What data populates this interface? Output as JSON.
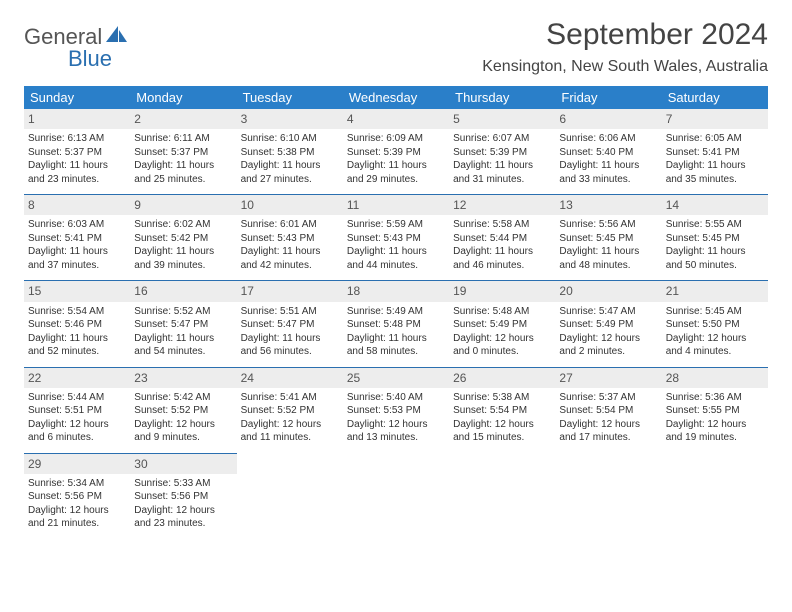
{
  "logo": {
    "text_main": "General",
    "text_sub": "Blue",
    "icon_color": "#2a6fb0"
  },
  "title": "September 2024",
  "location": "Kensington, New South Wales, Australia",
  "colors": {
    "header_bg": "#2a7fc9",
    "header_fg": "#ffffff",
    "daynum_bg": "#ededed",
    "row_divider": "#2a6fb0",
    "body_text": "#333333"
  },
  "weekdays": [
    "Sunday",
    "Monday",
    "Tuesday",
    "Wednesday",
    "Thursday",
    "Friday",
    "Saturday"
  ],
  "days": [
    {
      "n": 1,
      "sunrise": "6:13 AM",
      "sunset": "5:37 PM",
      "dl": "11 hours and 23 minutes."
    },
    {
      "n": 2,
      "sunrise": "6:11 AM",
      "sunset": "5:37 PM",
      "dl": "11 hours and 25 minutes."
    },
    {
      "n": 3,
      "sunrise": "6:10 AM",
      "sunset": "5:38 PM",
      "dl": "11 hours and 27 minutes."
    },
    {
      "n": 4,
      "sunrise": "6:09 AM",
      "sunset": "5:39 PM",
      "dl": "11 hours and 29 minutes."
    },
    {
      "n": 5,
      "sunrise": "6:07 AM",
      "sunset": "5:39 PM",
      "dl": "11 hours and 31 minutes."
    },
    {
      "n": 6,
      "sunrise": "6:06 AM",
      "sunset": "5:40 PM",
      "dl": "11 hours and 33 minutes."
    },
    {
      "n": 7,
      "sunrise": "6:05 AM",
      "sunset": "5:41 PM",
      "dl": "11 hours and 35 minutes."
    },
    {
      "n": 8,
      "sunrise": "6:03 AM",
      "sunset": "5:41 PM",
      "dl": "11 hours and 37 minutes."
    },
    {
      "n": 9,
      "sunrise": "6:02 AM",
      "sunset": "5:42 PM",
      "dl": "11 hours and 39 minutes."
    },
    {
      "n": 10,
      "sunrise": "6:01 AM",
      "sunset": "5:43 PM",
      "dl": "11 hours and 42 minutes."
    },
    {
      "n": 11,
      "sunrise": "5:59 AM",
      "sunset": "5:43 PM",
      "dl": "11 hours and 44 minutes."
    },
    {
      "n": 12,
      "sunrise": "5:58 AM",
      "sunset": "5:44 PM",
      "dl": "11 hours and 46 minutes."
    },
    {
      "n": 13,
      "sunrise": "5:56 AM",
      "sunset": "5:45 PM",
      "dl": "11 hours and 48 minutes."
    },
    {
      "n": 14,
      "sunrise": "5:55 AM",
      "sunset": "5:45 PM",
      "dl": "11 hours and 50 minutes."
    },
    {
      "n": 15,
      "sunrise": "5:54 AM",
      "sunset": "5:46 PM",
      "dl": "11 hours and 52 minutes."
    },
    {
      "n": 16,
      "sunrise": "5:52 AM",
      "sunset": "5:47 PM",
      "dl": "11 hours and 54 minutes."
    },
    {
      "n": 17,
      "sunrise": "5:51 AM",
      "sunset": "5:47 PM",
      "dl": "11 hours and 56 minutes."
    },
    {
      "n": 18,
      "sunrise": "5:49 AM",
      "sunset": "5:48 PM",
      "dl": "11 hours and 58 minutes."
    },
    {
      "n": 19,
      "sunrise": "5:48 AM",
      "sunset": "5:49 PM",
      "dl": "12 hours and 0 minutes."
    },
    {
      "n": 20,
      "sunrise": "5:47 AM",
      "sunset": "5:49 PM",
      "dl": "12 hours and 2 minutes."
    },
    {
      "n": 21,
      "sunrise": "5:45 AM",
      "sunset": "5:50 PM",
      "dl": "12 hours and 4 minutes."
    },
    {
      "n": 22,
      "sunrise": "5:44 AM",
      "sunset": "5:51 PM",
      "dl": "12 hours and 6 minutes."
    },
    {
      "n": 23,
      "sunrise": "5:42 AM",
      "sunset": "5:52 PM",
      "dl": "12 hours and 9 minutes."
    },
    {
      "n": 24,
      "sunrise": "5:41 AM",
      "sunset": "5:52 PM",
      "dl": "12 hours and 11 minutes."
    },
    {
      "n": 25,
      "sunrise": "5:40 AM",
      "sunset": "5:53 PM",
      "dl": "12 hours and 13 minutes."
    },
    {
      "n": 26,
      "sunrise": "5:38 AM",
      "sunset": "5:54 PM",
      "dl": "12 hours and 15 minutes."
    },
    {
      "n": 27,
      "sunrise": "5:37 AM",
      "sunset": "5:54 PM",
      "dl": "12 hours and 17 minutes."
    },
    {
      "n": 28,
      "sunrise": "5:36 AM",
      "sunset": "5:55 PM",
      "dl": "12 hours and 19 minutes."
    },
    {
      "n": 29,
      "sunrise": "5:34 AM",
      "sunset": "5:56 PM",
      "dl": "12 hours and 21 minutes."
    },
    {
      "n": 30,
      "sunrise": "5:33 AM",
      "sunset": "5:56 PM",
      "dl": "12 hours and 23 minutes."
    }
  ],
  "labels": {
    "sunrise": "Sunrise:",
    "sunset": "Sunset:",
    "daylight": "Daylight:"
  }
}
